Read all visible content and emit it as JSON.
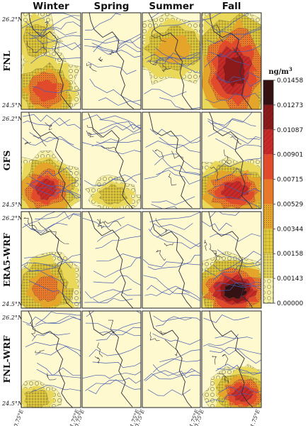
{
  "chart_data": {
    "type": "heatmap",
    "columns": [
      "Winter",
      "Spring",
      "Summer",
      "Fall"
    ],
    "rows": [
      "FNL",
      "GFS",
      "ERA5-WRF",
      "FNL-WRF"
    ],
    "lat_labels": [
      "26.2°N",
      "24.5°N"
    ],
    "lon_labels": [
      "50.75°E",
      "51.75°E"
    ],
    "colorbar": {
      "unit": "ng/m",
      "unit_sup": "3",
      "ticks": [
        "0.01458",
        "0.01273",
        "0.01087",
        "0.00901",
        "0.00715",
        "0.00529",
        "0.00344",
        "0.00158",
        "0.00143",
        "0.00000"
      ],
      "colors": [
        "#fff9cf",
        "#f7f1a8",
        "#e9d85a",
        "#e3ca3a",
        "#e5a52a",
        "#e8782a",
        "#e14a2b",
        "#c92a27",
        "#8c1a1a",
        "#3d0f0f"
      ]
    },
    "pollution_patches": {
      "FNL": {
        "Winter": [
          {
            "zone": "north-west",
            "level": 0.00344
          },
          {
            "zone": "south-west",
            "level": 0.00901
          }
        ],
        "Spring": [],
        "Summer": [
          {
            "zone": "north",
            "level": 0.00529
          }
        ],
        "Fall": [
          {
            "zone": "full",
            "level": 0.01273
          }
        ]
      },
      "GFS": {
        "Winter": [
          {
            "zone": "south-west",
            "level": 0.01087
          }
        ],
        "Spring": [
          {
            "zone": "south-centre",
            "level": 0.00344
          }
        ],
        "Summer": [],
        "Fall": [
          {
            "zone": "south",
            "level": 0.01087
          }
        ]
      },
      "ERA5-WRF": {
        "Winter": [
          {
            "zone": "south-west",
            "level": 0.00715
          }
        ],
        "Spring": [],
        "Summer": [],
        "Fall": [
          {
            "zone": "south",
            "level": 0.01458
          }
        ]
      },
      "FNL-WRF": {
        "Winter": [
          {
            "zone": "south-west corner",
            "level": 0.00344
          }
        ],
        "Spring": [],
        "Summer": [],
        "Fall": [
          {
            "zone": "south-east",
            "level": 0.01087
          }
        ]
      }
    }
  }
}
